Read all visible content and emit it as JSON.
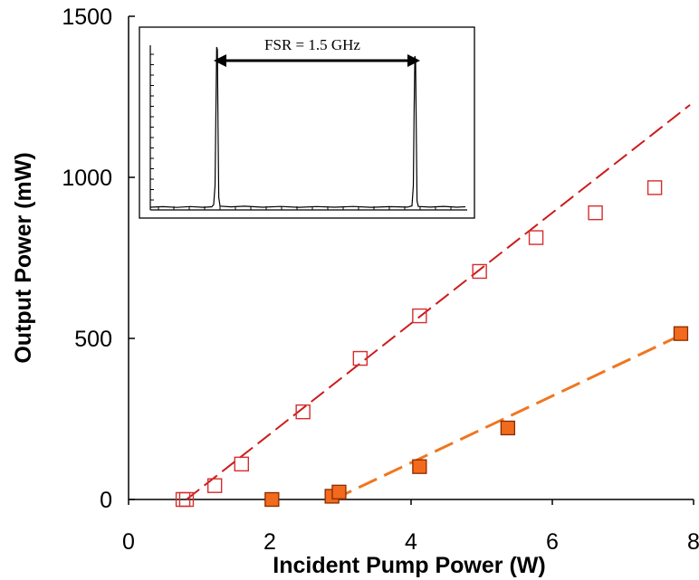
{
  "chart_data": {
    "type": "scatter",
    "title": "",
    "xlabel": "Incident Pump Power (W)",
    "ylabel": "Output Power (mW)",
    "xlim": [
      0,
      8
    ],
    "ylim": [
      0,
      1500
    ],
    "x_ticks": [
      "0",
      "2",
      "4",
      "6",
      "8"
    ],
    "y_ticks": [
      "0",
      "500",
      "1000",
      "1500"
    ],
    "grid": false,
    "legend": "none",
    "series": [
      {
        "marker": "open-square",
        "color": "#d62c2c",
        "points": [
          [
            0.77,
            0
          ],
          [
            0.82,
            0
          ],
          [
            1.22,
            43
          ],
          [
            1.6,
            110
          ],
          [
            2.47,
            272
          ],
          [
            3.28,
            438
          ],
          [
            4.12,
            570
          ],
          [
            4.97,
            708
          ],
          [
            5.77,
            813
          ],
          [
            6.61,
            890
          ],
          [
            7.45,
            968
          ]
        ],
        "fit": {
          "color": "#cc1c1c",
          "dash": "18,7",
          "x": [
            0.82,
            7.95
          ],
          "y": [
            0,
            1225
          ]
        }
      },
      {
        "marker": "filled-square",
        "color": "#f26a1b",
        "edge_color": "#8b2a00",
        "points": [
          [
            2.03,
            0
          ],
          [
            2.88,
            10
          ],
          [
            2.98,
            23
          ],
          [
            4.12,
            102
          ],
          [
            5.37,
            222
          ],
          [
            7.82,
            515
          ]
        ],
        "fit": {
          "color": "#f0761f",
          "dash": "22,9",
          "x": [
            2.9,
            7.82
          ],
          "y": [
            0,
            510
          ]
        }
      }
    ],
    "inset": {
      "annotation": "FSR = 1.5 GHz"
    }
  }
}
